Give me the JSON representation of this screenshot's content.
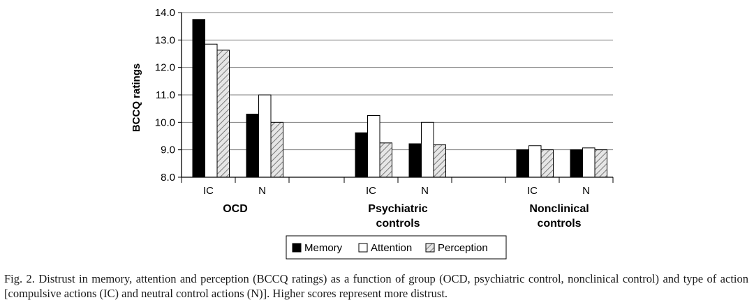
{
  "chart_data": {
    "type": "bar",
    "ylabel": "BCCQ ratings",
    "ylim": [
      8.0,
      14.0
    ],
    "yticks": [
      "8.0",
      "9.0",
      "10.0",
      "11.0",
      "12.0",
      "13.0",
      "14.0"
    ],
    "grid": true,
    "groups": [
      {
        "label": "OCD",
        "categories": [
          "IC",
          "N"
        ]
      },
      {
        "label": "Psychiatric controls",
        "label_lines": [
          "Psychiatric",
          "controls"
        ],
        "categories": [
          "IC",
          "N"
        ]
      },
      {
        "label": "Nonclinical controls",
        "label_lines": [
          "Nonclinical",
          "controls"
        ],
        "categories": [
          "IC",
          "N"
        ]
      }
    ],
    "series": [
      {
        "name": "Memory",
        "style": "solid",
        "color": "#000000",
        "values": [
          13.75,
          10.3,
          9.62,
          9.22,
          9.0,
          9.0
        ]
      },
      {
        "name": "Attention",
        "style": "hollow",
        "color": "#ffffff",
        "values": [
          12.85,
          11.0,
          10.25,
          10.0,
          9.15,
          9.07
        ]
      },
      {
        "name": "Perception",
        "style": "hatched",
        "color": "#d9d9d9",
        "values": [
          12.63,
          10.0,
          9.25,
          9.18,
          9.0,
          9.0
        ]
      }
    ],
    "legend_position": "bottom-center"
  },
  "caption": {
    "text": "Fig. 2. Distrust in memory, attention and perception (BCCQ ratings) as a function of group (OCD, psychiatric control, nonclinical control) and type of action [compulsive actions (IC) and neutral control actions (N)]. Higher scores represent more distrust."
  }
}
